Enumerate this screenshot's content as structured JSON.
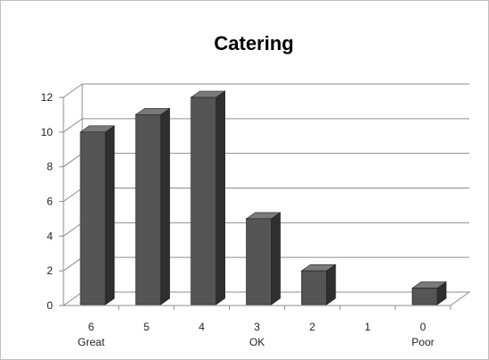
{
  "chart_data": {
    "type": "bar",
    "title": "Catering",
    "categories": [
      "6",
      "5",
      "4",
      "3",
      "2",
      "1",
      "0"
    ],
    "category_sublabels": [
      "Great",
      "",
      "",
      "OK",
      "",
      "",
      "Poor"
    ],
    "values": [
      10,
      11,
      12,
      5,
      2,
      0,
      1
    ],
    "yticks": [
      "0",
      "2",
      "4",
      "6",
      "8",
      "10",
      "12"
    ],
    "ylim": [
      0,
      12
    ],
    "grid": true,
    "legend": "none",
    "xlabel": "",
    "ylabel": "",
    "bar_color": "#555555",
    "bar_side_color": "#2f2f2f",
    "bar_top_color": "#7a7a7a"
  }
}
